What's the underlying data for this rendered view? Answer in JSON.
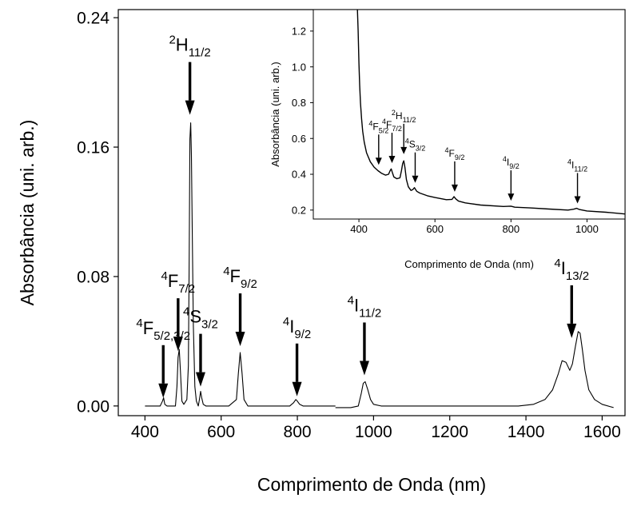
{
  "chart_data": [
    {
      "id": "main",
      "type": "line",
      "xlabel": "Comprimento de Onda (nm)",
      "ylabel": "Absorbância (uni. arb.)",
      "xlim": [
        330,
        1660
      ],
      "ylim": [
        -0.006,
        0.245
      ],
      "xticks": [
        400,
        600,
        800,
        1000,
        1200,
        1400,
        1600
      ],
      "yticks": [
        0.0,
        0.08,
        0.16,
        0.24
      ],
      "ytick_labels": [
        "0.00",
        "0.08",
        "0.16",
        "0.24"
      ],
      "series": [
        {
          "color": "#000000",
          "segments": [
            {
              "x": [
                400,
                440,
                446,
                449,
                452,
                458,
                480,
                484,
                487,
                490,
                493,
                497,
                502,
                510,
                514,
                516,
                518,
                520,
                522,
                524,
                527,
                531,
                535,
                540,
                543,
                546,
                549,
                553,
                560,
                580,
                620,
                640,
                645,
                650,
                655,
                660,
                670,
                700,
                750,
                780,
                790,
                796,
                800,
                806,
                815,
                900
              ],
              "y": [
                0.0,
                0.0,
                0.003,
                0.005,
                0.001,
                0.0,
                0.0,
                0.012,
                0.03,
                0.035,
                0.022,
                0.003,
                0.001,
                0.004,
                0.025,
                0.09,
                0.165,
                0.175,
                0.155,
                0.11,
                0.05,
                0.012,
                0.003,
                0.0,
                0.004,
                0.009,
                0.005,
                0.001,
                0.0,
                0.0,
                0.0,
                0.004,
                0.02,
                0.033,
                0.02,
                0.004,
                0.0,
                0.0,
                0.0,
                0.0,
                0.002,
                0.004,
                0.003,
                0.001,
                0.0,
                0.0
              ]
            },
            {
              "x": [
                900,
                940,
                960,
                968,
                973,
                978,
                985,
                992,
                1000,
                1020,
                1100,
                1200,
                1300,
                1380,
                1420,
                1450,
                1470,
                1485,
                1495,
                1505,
                1515,
                1522,
                1530,
                1537,
                1542,
                1548,
                1555,
                1565,
                1580,
                1600,
                1630
              ],
              "y": [
                -0.001,
                -0.001,
                0.0,
                0.008,
                0.014,
                0.015,
                0.01,
                0.004,
                0.001,
                0.0,
                0.0,
                0.0,
                0.0,
                0.0,
                0.001,
                0.004,
                0.01,
                0.02,
                0.028,
                0.027,
                0.022,
                0.026,
                0.037,
                0.046,
                0.045,
                0.035,
                0.022,
                0.01,
                0.004,
                0.001,
                -0.001
              ]
            }
          ]
        }
      ],
      "annotations": [
        {
          "main": "4",
          "label": "F",
          "sub": "5/2,3/2",
          "x": 448,
          "y": 0.003
        },
        {
          "main": "4",
          "label": "F",
          "sub": "7/2",
          "x": 487,
          "y": 0.032
        },
        {
          "main": "2",
          "label": "H",
          "sub": "11/2",
          "x": 518,
          "y": 0.178
        },
        {
          "main": "4",
          "label": "S",
          "sub": "3/2",
          "x": 546,
          "y": 0.01
        },
        {
          "main": "4",
          "label": "F",
          "sub": "9/2",
          "x": 650,
          "y": 0.035
        },
        {
          "main": "4",
          "label": "I",
          "sub": "9/2",
          "x": 799,
          "y": 0.004
        },
        {
          "main": "4",
          "label": "I",
          "sub": "11/2",
          "x": 976,
          "y": 0.017
        },
        {
          "main": "4",
          "label": "I",
          "sub": "13/2",
          "x": 1520,
          "y": 0.04
        }
      ]
    },
    {
      "id": "inset",
      "type": "line",
      "xlabel": "Comprimento de Onda (nm)",
      "ylabel": "Absorbância (uni. arb.)",
      "xlim": [
        280,
        1100
      ],
      "ylim": [
        0.15,
        1.32
      ],
      "xticks": [
        400,
        600,
        800,
        1000
      ],
      "yticks": [
        0.2,
        0.4,
        0.6,
        0.8,
        1.0,
        1.2
      ],
      "ytick_labels": [
        "0.2",
        "0.4",
        "0.6",
        "0.8",
        "1.0",
        "1.2"
      ],
      "series": [
        {
          "color": "#000000",
          "x": [
            396,
            398,
            400,
            402,
            404,
            407,
            410,
            414,
            420,
            430,
            440,
            450,
            460,
            470,
            478,
            482,
            485,
            488,
            492,
            500,
            508,
            512,
            515,
            518,
            521,
            525,
            530,
            537,
            542,
            546,
            552,
            560,
            580,
            600,
            630,
            645,
            650,
            655,
            662,
            680,
            720,
            780,
            800,
            810,
            850,
            900,
            950,
            965,
            973,
            980,
            1000,
            1050,
            1100
          ],
          "y": [
            1.32,
            1.2,
            1.02,
            0.9,
            0.8,
            0.71,
            0.64,
            0.58,
            0.52,
            0.47,
            0.44,
            0.42,
            0.405,
            0.395,
            0.4,
            0.42,
            0.43,
            0.41,
            0.385,
            0.375,
            0.38,
            0.42,
            0.46,
            0.475,
            0.44,
            0.37,
            0.33,
            0.31,
            0.315,
            0.325,
            0.305,
            0.295,
            0.28,
            0.27,
            0.258,
            0.26,
            0.275,
            0.262,
            0.25,
            0.24,
            0.228,
            0.22,
            0.222,
            0.216,
            0.212,
            0.206,
            0.2,
            0.205,
            0.21,
            0.203,
            0.195,
            0.188,
            0.178
          ]
        }
      ],
      "annotations": [
        {
          "main": "4",
          "label": "F",
          "sub": "5/2",
          "x": 452,
          "y": 0.43
        },
        {
          "main": "4",
          "label": "F",
          "sub": "7/2",
          "x": 487,
          "y": 0.44
        },
        {
          "main": "2",
          "label": "H",
          "sub": "11/2",
          "x": 518,
          "y": 0.49
        },
        {
          "main": "4",
          "label": "S",
          "sub": "3/2",
          "x": 548,
          "y": 0.33
        },
        {
          "main": "4",
          "label": "F",
          "sub": "9/2",
          "x": 652,
          "y": 0.28
        },
        {
          "main": "4",
          "label": "I",
          "sub": "9/2",
          "x": 800,
          "y": 0.23
        },
        {
          "main": "4",
          "label": "I",
          "sub": "11/2",
          "x": 975,
          "y": 0.215
        }
      ]
    }
  ]
}
